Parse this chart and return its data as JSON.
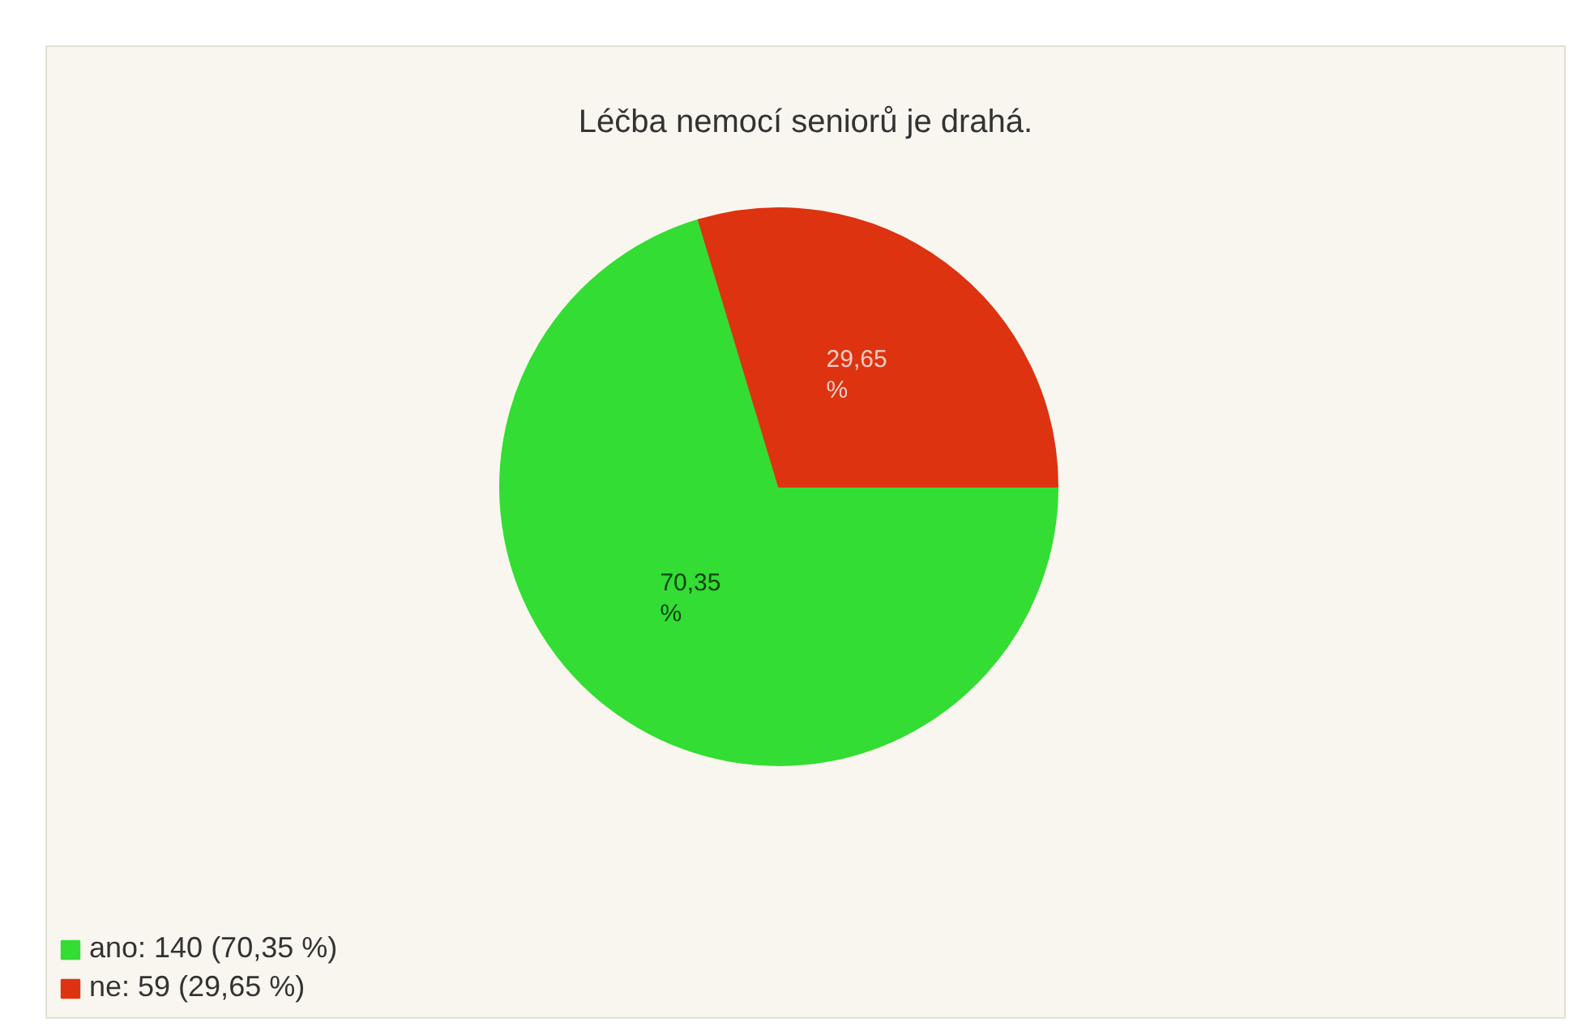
{
  "chart_data": {
    "type": "pie",
    "title": "Léčba nemocí seniorů je drahá.",
    "categories": [
      "ano: 140 (70,35 %)",
      "ne: 59 (29,65 %)"
    ],
    "values": [
      70.35,
      29.65
    ],
    "colors": [
      "#33dd33",
      "#dd3311"
    ],
    "value_labels": [
      "70,35\n%",
      "29,65\n%"
    ],
    "legend": "bottom left"
  }
}
